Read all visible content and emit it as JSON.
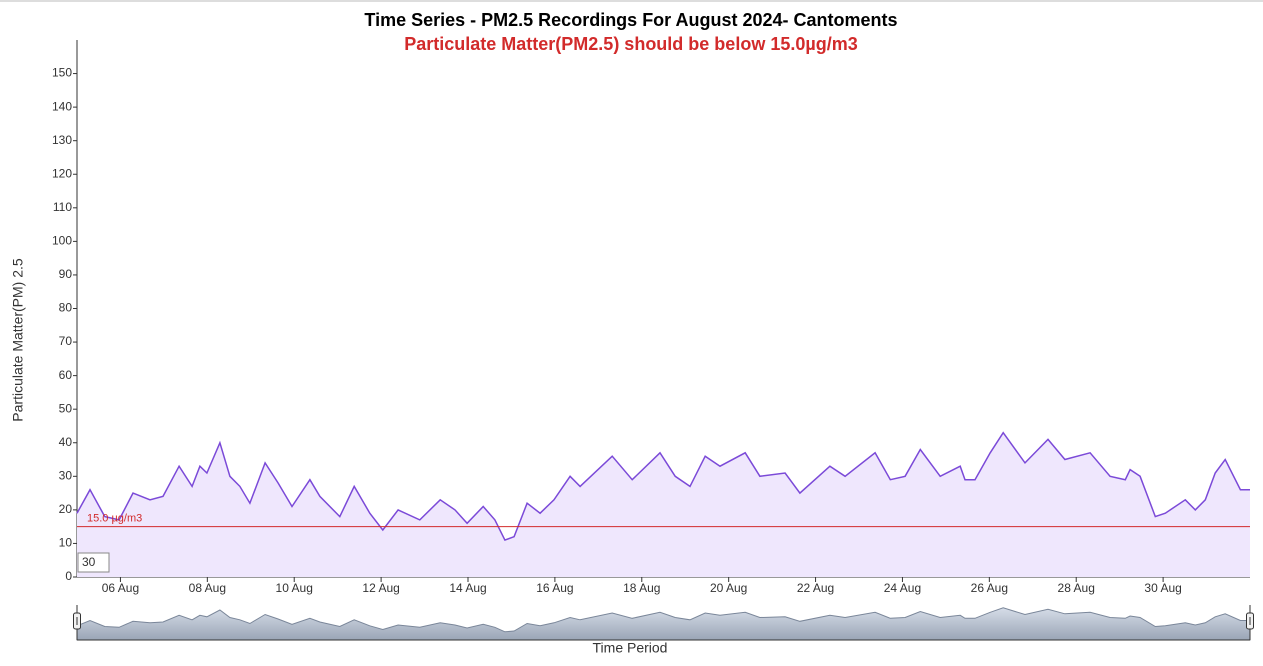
{
  "chart_data": {
    "type": "area",
    "title": "Time Series - PM2.5 Recordings For August 2024- Cantoments",
    "subtitle": "Particulate Matter(PM2.5) should be below 15.0µg/m3",
    "y_label": "Particulate Matter(PM) 2.5",
    "x_label": "Time Period",
    "threshold": 15,
    "threshold_label": "15.0 µg/m3",
    "threshold_color": "#d22b2b",
    "input_value": "30",
    "xlim": [
      5,
      32
    ],
    "ylim": [
      0,
      160
    ],
    "yticks": [
      0,
      10,
      20,
      30,
      40,
      50,
      60,
      70,
      80,
      90,
      100,
      110,
      120,
      130,
      140,
      150
    ],
    "xticks": [
      {
        "value": 6,
        "label": "06 Aug"
      },
      {
        "value": 8,
        "label": "08 Aug"
      },
      {
        "value": 10,
        "label": "10 Aug"
      },
      {
        "value": 12,
        "label": "12 Aug"
      },
      {
        "value": 14,
        "label": "14 Aug"
      },
      {
        "value": 16,
        "label": "16 Aug"
      },
      {
        "value": 18,
        "label": "18 Aug"
      },
      {
        "value": 20,
        "label": "20 Aug"
      },
      {
        "value": 22,
        "label": "22 Aug"
      },
      {
        "value": 24,
        "label": "24 Aug"
      },
      {
        "value": 26,
        "label": "26 Aug"
      },
      {
        "value": 28,
        "label": "28 Aug"
      },
      {
        "value": 30,
        "label": "30 Aug"
      }
    ],
    "x": [
      5.0,
      5.3,
      5.64,
      5.97,
      6.29,
      6.68,
      6.98,
      7.35,
      7.65,
      7.83,
      7.99,
      8.29,
      8.52,
      8.75,
      8.98,
      9.33,
      9.63,
      9.95,
      10.36,
      10.59,
      11.05,
      11.38,
      11.74,
      12.04,
      12.39,
      12.89,
      13.36,
      13.7,
      13.98,
      14.35,
      14.62,
      14.85,
      15.06,
      15.36,
      15.66,
      15.98,
      16.35,
      16.58,
      17.32,
      17.78,
      18.42,
      18.77,
      19.11,
      19.46,
      19.8,
      20.38,
      20.72,
      21.3,
      21.64,
      22.33,
      22.68,
      23.37,
      23.72,
      24.06,
      24.41,
      24.87,
      25.33,
      25.44,
      25.67,
      26.02,
      26.32,
      26.82,
      27.35,
      27.74,
      28.32,
      28.78,
      29.13,
      29.24,
      29.47,
      29.82,
      30.05,
      30.51,
      30.74,
      30.97,
      31.2,
      31.43,
      31.78,
      32.0
    ],
    "series": [
      {
        "color": "#7b4ad8",
        "fill": "#efe7fd",
        "values": [
          19,
          26,
          18,
          17,
          25,
          23,
          24,
          33,
          27,
          33,
          31,
          40,
          30,
          27,
          22,
          34,
          28,
          21,
          29,
          24,
          18,
          27,
          19,
          14,
          20,
          17,
          23,
          20,
          16,
          21,
          17,
          11,
          12,
          22,
          19,
          23,
          30,
          27,
          36,
          29,
          37,
          30,
          27,
          36,
          33,
          37,
          30,
          31,
          25,
          33,
          30,
          37,
          29,
          30,
          38,
          30,
          33,
          29,
          29,
          37,
          43,
          34,
          41,
          35,
          37,
          30,
          29,
          32,
          30,
          18,
          19,
          23,
          20,
          23,
          31,
          35,
          26,
          26
        ]
      }
    ]
  }
}
